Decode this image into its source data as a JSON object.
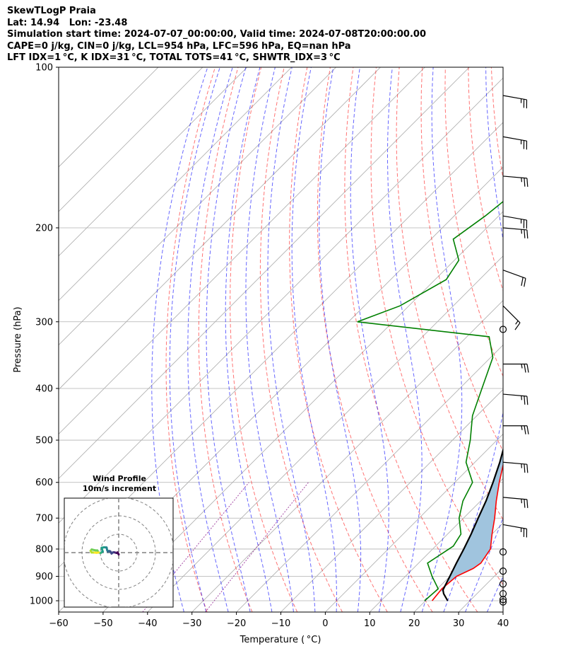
{
  "titles": [
    "SkewTLogP Praia",
    "Lat: 14.94   Lon: -23.48",
    "Simulation start time: 2024-07-07_00:00:00, Valid time: 2024-07-08T20:00:00.00",
    "CAPE=0 j/kg, CIN=0 j/kg, LCL=954 hPa, LFC=596 hPa, EQ=nan hPa",
    "LFT IDX=1 °C, K IDX=31 °C, TOTAL TOTS=41 °C, SHWTR_IDX=3 °C"
  ],
  "chart_data": {
    "type": "line",
    "xlabel": "Temperature ( °C)",
    "ylabel": "Pressure (hPa)",
    "xlim": [
      -60,
      40
    ],
    "ylim": [
      1050,
      100
    ],
    "x_ticks": [
      "−60",
      "−50",
      "−40",
      "−30",
      "−20",
      "−10",
      "0",
      "10",
      "20",
      "30",
      "40"
    ],
    "y_ticks": [
      "100",
      "200",
      "300",
      "400",
      "500",
      "600",
      "700",
      "800",
      "900",
      "1000"
    ],
    "y_tick_values": [
      100,
      200,
      300,
      400,
      500,
      600,
      700,
      800,
      900,
      1000
    ],
    "grid": true,
    "skew_degrees": 45,
    "series": [
      {
        "key": "temperature",
        "color": "#ff0000",
        "points": [
          [
            1000,
            21.5
          ],
          [
            950,
            21
          ],
          [
            900,
            21.5
          ],
          [
            870,
            23.5
          ],
          [
            850,
            24
          ],
          [
            800,
            23
          ],
          [
            750,
            20
          ],
          [
            700,
            17
          ],
          [
            650,
            13.5
          ],
          [
            600,
            10
          ],
          [
            550,
            6.5
          ],
          [
            500,
            2.5
          ],
          [
            450,
            -2
          ],
          [
            400,
            -7
          ],
          [
            350,
            -12.5
          ],
          [
            300,
            -19
          ],
          [
            280,
            -22.5
          ],
          [
            250,
            -27
          ],
          [
            220,
            -33.5
          ],
          [
            200,
            -38
          ],
          [
            180,
            -44
          ],
          [
            160,
            -50
          ],
          [
            140,
            -57
          ],
          [
            125,
            -64
          ],
          [
            110,
            -68
          ],
          [
            100,
            -68
          ]
        ]
      },
      {
        "key": "dewpoint",
        "color": "#008000",
        "points": [
          [
            1000,
            19.8
          ],
          [
            950,
            20.2
          ],
          [
            900,
            16
          ],
          [
            850,
            12
          ],
          [
            820,
            13
          ],
          [
            790,
            14
          ],
          [
            750,
            13
          ],
          [
            700,
            9
          ],
          [
            650,
            6
          ],
          [
            600,
            4
          ],
          [
            550,
            -2
          ],
          [
            500,
            -6
          ],
          [
            450,
            -11
          ],
          [
            400,
            -15
          ],
          [
            350,
            -19.5
          ],
          [
            320,
            -25
          ],
          [
            300,
            -58
          ],
          [
            280,
            -52
          ],
          [
            250,
            -47.5
          ],
          [
            230,
            -49
          ],
          [
            210,
            -55
          ],
          [
            190,
            -53
          ],
          [
            175,
            -52
          ],
          [
            160,
            -56
          ],
          [
            135,
            -63
          ],
          [
            120,
            -70
          ],
          [
            110,
            -72
          ],
          [
            100,
            -72
          ]
        ]
      },
      {
        "key": "parcel",
        "color": "#000000",
        "points": [
          [
            1000,
            25
          ],
          [
            970,
            22.5
          ],
          [
            954,
            21.5
          ],
          [
            900,
            20
          ],
          [
            850,
            18.5
          ],
          [
            800,
            17
          ],
          [
            750,
            15.3
          ],
          [
            700,
            13.3
          ],
          [
            650,
            11.2
          ],
          [
            600,
            8.6
          ],
          [
            550,
            5.6
          ],
          [
            500,
            2
          ],
          [
            450,
            -2.4
          ],
          [
            400,
            -7.7
          ],
          [
            350,
            -14
          ],
          [
            300,
            -21.5
          ],
          [
            250,
            -31
          ],
          [
            200,
            -43
          ],
          [
            150,
            -58.5
          ],
          [
            125,
            -69
          ],
          [
            100,
            -82
          ]
        ]
      }
    ],
    "wind_profile": {
      "title": "Wind Profile",
      "subtitle": "10m/s increment",
      "rings_ms": [
        10,
        20,
        30
      ],
      "trace_uv_ms": [
        [
          0,
          -1
        ],
        [
          -0.6,
          0.1
        ],
        [
          -1.2,
          -0.2
        ],
        [
          -1.8,
          0
        ],
        [
          -2.6,
          0.2
        ],
        [
          -3.2,
          0.1
        ],
        [
          -3.9,
          -0.5
        ],
        [
          -4.6,
          0.7
        ],
        [
          -5.2,
          0.9
        ],
        [
          -5.9,
          0.5
        ],
        [
          -6.3,
          1.4
        ],
        [
          -6.6,
          2.8
        ],
        [
          -7.9,
          2.9
        ],
        [
          -9.3,
          2.6
        ],
        [
          -8.7,
          0.6
        ],
        [
          -9.8,
          -0.2
        ],
        [
          -11.1,
          0.1
        ],
        [
          -11.6,
          1.2
        ],
        [
          -12.6,
          1.2
        ],
        [
          -14.7,
          1.7
        ],
        [
          -15.3,
          1
        ],
        [
          -14.8,
          0.1
        ],
        [
          -13.1,
          0
        ],
        [
          -12,
          -0.1
        ],
        [
          -10.8,
          0.1
        ]
      ]
    },
    "wind_barbs": [
      {
        "p": 113,
        "speed_kt": 25,
        "dir_deg": 100
      },
      {
        "p": 135,
        "speed_kt": 25,
        "dir_deg": 100
      },
      {
        "p": 160,
        "speed_kt": 25,
        "dir_deg": 95
      },
      {
        "p": 190,
        "speed_kt": 25,
        "dir_deg": 100
      },
      {
        "p": 200,
        "speed_kt": 25,
        "dir_deg": 95
      },
      {
        "p": 240,
        "speed_kt": 20,
        "dir_deg": 110
      },
      {
        "p": 280,
        "speed_kt": 15,
        "dir_deg": 135
      },
      {
        "p": 310,
        "speed_kt": 0,
        "dir_deg": 0
      },
      {
        "p": 360,
        "speed_kt": 25,
        "dir_deg": 90
      },
      {
        "p": 410,
        "speed_kt": 25,
        "dir_deg": 95
      },
      {
        "p": 470,
        "speed_kt": 25,
        "dir_deg": 90
      },
      {
        "p": 550,
        "speed_kt": 25,
        "dir_deg": 95
      },
      {
        "p": 640,
        "speed_kt": 25,
        "dir_deg": 95
      },
      {
        "p": 720,
        "speed_kt": 25,
        "dir_deg": 100
      },
      {
        "p": 810,
        "speed_kt": 0,
        "dir_deg": 0
      },
      {
        "p": 880,
        "speed_kt": 0,
        "dir_deg": 0
      },
      {
        "p": 930,
        "speed_kt": 0,
        "dir_deg": 0
      },
      {
        "p": 970,
        "speed_kt": 0,
        "dir_deg": 0
      },
      {
        "p": 995,
        "speed_kt": 0,
        "dir_deg": 0
      },
      {
        "p": 1005,
        "speed_kt": 0,
        "dir_deg": 0
      }
    ],
    "colors": {
      "dry_adiabat": "#ff0000",
      "moist_adiabat": "#0000ff",
      "mixing_ratio": "#800080",
      "cape_fill": "#a0c4de",
      "isotherm": "#aaaaaa"
    }
  }
}
